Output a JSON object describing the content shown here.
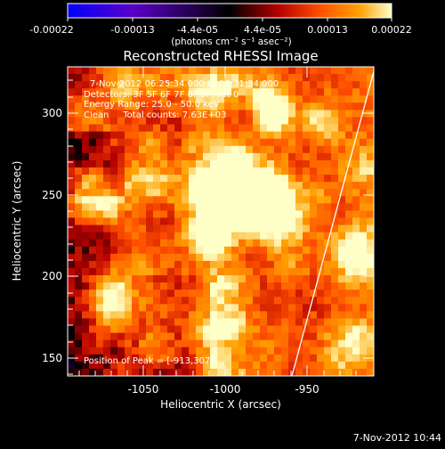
{
  "colorbar": {
    "tick_labels": [
      "-0.00022",
      "-0.00013",
      "-4.4e-05",
      "4.4e-05",
      "0.00013",
      "0.00022"
    ],
    "units_label": "(photons cm⁻² s⁻¹ asec⁻²)",
    "colormap": [
      "#0000ff",
      "#5a00c8",
      "#000000",
      "#b40000",
      "#ff5000",
      "#ffa000",
      "#ffffc8"
    ]
  },
  "plot": {
    "title": "Reconstructed RHESSI Image",
    "xlabel": "Heliocentric X (arcsec)",
    "ylabel": "Heliocentric Y (arcsec)",
    "x_ticks": [
      "-1050",
      "-1000",
      "-950"
    ],
    "y_ticks": [
      "300",
      "250",
      "200",
      "150"
    ]
  },
  "annotations": {
    "time_range": "7-Nov-2012 06:25:34.000 to 06:31:34.000",
    "detectors": "Detectors: 3F 5F 6F 7F 8F 9F, Att 0",
    "energy_range": "Energy Range: 25.0 - 50.0 keV",
    "clean_counts": "Clean     Total counts: 7.63E+03",
    "peak_position": "Position of Peak = [-913,307]"
  },
  "footer": {
    "timestamp": "7-Nov-2012 10:44"
  }
}
